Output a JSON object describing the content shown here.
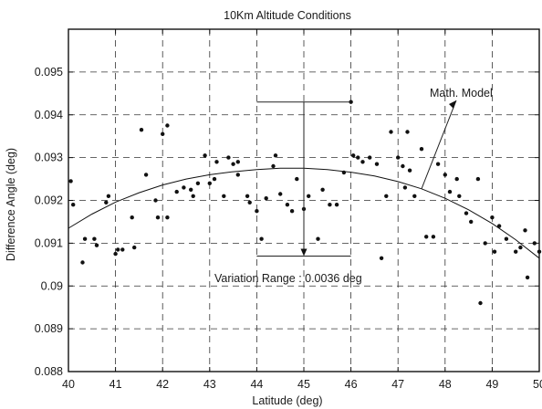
{
  "chart_data": {
    "type": "scatter",
    "title": "10Km Altitude Conditions",
    "xlabel": "Latitude (deg)",
    "ylabel": "Difference Angle (deg)",
    "xlim": [
      40,
      50
    ],
    "ylim": [
      0.088,
      0.096
    ],
    "xticks": [
      "40",
      "41",
      "42",
      "43",
      "44",
      "45",
      "46",
      "47",
      "48",
      "49",
      "50"
    ],
    "yticks": [
      "0.088",
      "0.089",
      "0.09",
      "0.091",
      "0.092",
      "0.093",
      "0.094",
      "0.095"
    ],
    "grid": true,
    "grid_style": "dashed",
    "marker_color": "#111111",
    "line_color": "#111111",
    "points": [
      [
        40.05,
        0.09245
      ],
      [
        40.1,
        0.0919
      ],
      [
        40.3,
        0.09055
      ],
      [
        40.35,
        0.0911
      ],
      [
        40.55,
        0.0911
      ],
      [
        40.6,
        0.09095
      ],
      [
        40.8,
        0.09195
      ],
      [
        40.85,
        0.0921
      ],
      [
        41.0,
        0.09075
      ],
      [
        41.05,
        0.09085
      ],
      [
        41.15,
        0.09085
      ],
      [
        41.35,
        0.0916
      ],
      [
        41.4,
        0.0909
      ],
      [
        41.55,
        0.09365
      ],
      [
        41.65,
        0.0926
      ],
      [
        41.85,
        0.092
      ],
      [
        41.9,
        0.0916
      ],
      [
        42.0,
        0.09355
      ],
      [
        42.1,
        0.09375
      ],
      [
        42.1,
        0.0916
      ],
      [
        42.3,
        0.0922
      ],
      [
        42.45,
        0.0923
      ],
      [
        42.6,
        0.09225
      ],
      [
        42.65,
        0.0921
      ],
      [
        42.75,
        0.0924
      ],
      [
        42.9,
        0.09305
      ],
      [
        43.0,
        0.0924
      ],
      [
        43.1,
        0.0925
      ],
      [
        43.15,
        0.0929
      ],
      [
        43.3,
        0.0921
      ],
      [
        43.4,
        0.093
      ],
      [
        43.5,
        0.09285
      ],
      [
        43.6,
        0.0926
      ],
      [
        43.6,
        0.0929
      ],
      [
        43.8,
        0.0921
      ],
      [
        43.85,
        0.09195
      ],
      [
        44.0,
        0.09175
      ],
      [
        44.1,
        0.0911
      ],
      [
        44.2,
        0.09205
      ],
      [
        44.35,
        0.0928
      ],
      [
        44.4,
        0.09305
      ],
      [
        44.5,
        0.09215
      ],
      [
        44.65,
        0.0919
      ],
      [
        44.75,
        0.09175
      ],
      [
        44.85,
        0.0925
      ],
      [
        45.0,
        0.0918
      ],
      [
        45.1,
        0.0921
      ],
      [
        45.3,
        0.0911
      ],
      [
        45.4,
        0.09225
      ],
      [
        45.55,
        0.0919
      ],
      [
        45.7,
        0.0919
      ],
      [
        45.85,
        0.09265
      ],
      [
        46.0,
        0.0943
      ],
      [
        46.05,
        0.09305
      ],
      [
        46.15,
        0.093
      ],
      [
        46.25,
        0.0929
      ],
      [
        46.4,
        0.093
      ],
      [
        46.55,
        0.09285
      ],
      [
        46.65,
        0.09065
      ],
      [
        46.75,
        0.0921
      ],
      [
        46.85,
        0.0936
      ],
      [
        47.0,
        0.093
      ],
      [
        47.1,
        0.0928
      ],
      [
        47.15,
        0.0923
      ],
      [
        47.2,
        0.0936
      ],
      [
        47.25,
        0.0927
      ],
      [
        47.35,
        0.0921
      ],
      [
        47.5,
        0.0932
      ],
      [
        47.6,
        0.09115
      ],
      [
        47.75,
        0.09115
      ],
      [
        47.85,
        0.09285
      ],
      [
        48.0,
        0.0926
      ],
      [
        48.1,
        0.0922
      ],
      [
        48.25,
        0.0925
      ],
      [
        48.3,
        0.0921
      ],
      [
        48.45,
        0.0917
      ],
      [
        48.55,
        0.0915
      ],
      [
        48.7,
        0.0925
      ],
      [
        48.75,
        0.0896
      ],
      [
        48.85,
        0.091
      ],
      [
        49.0,
        0.0916
      ],
      [
        49.05,
        0.0908
      ],
      [
        49.15,
        0.0914
      ],
      [
        49.3,
        0.0911
      ],
      [
        49.5,
        0.0908
      ],
      [
        49.6,
        0.0909
      ],
      [
        49.7,
        0.0913
      ],
      [
        49.75,
        0.0902
      ],
      [
        49.9,
        0.091
      ],
      [
        50.0,
        0.0908
      ]
    ],
    "model_curve": [
      [
        40.0,
        0.09135
      ],
      [
        40.5,
        0.09168
      ],
      [
        41.0,
        0.09196
      ],
      [
        41.5,
        0.09218
      ],
      [
        42.0,
        0.09236
      ],
      [
        42.5,
        0.0925
      ],
      [
        43.0,
        0.0926
      ],
      [
        43.5,
        0.09267
      ],
      [
        44.0,
        0.09272
      ],
      [
        44.5,
        0.09275
      ],
      [
        45.0,
        0.09275
      ],
      [
        45.5,
        0.09272
      ],
      [
        46.0,
        0.09266
      ],
      [
        46.5,
        0.09257
      ],
      [
        47.0,
        0.09244
      ],
      [
        47.5,
        0.09227
      ],
      [
        48.0,
        0.09205
      ],
      [
        48.5,
        0.09178
      ],
      [
        49.0,
        0.09146
      ],
      [
        49.5,
        0.09108
      ],
      [
        50.0,
        0.09065
      ]
    ],
    "variation_range": {
      "x_left": 44.0,
      "x_right": 46.0,
      "x_arrow": 45.0,
      "y_top": 0.0943,
      "y_bottom": 0.0907
    },
    "annotations": {
      "model_label": "Math. Model",
      "variation_label": "Variation Range : 0.0036 deg"
    }
  }
}
